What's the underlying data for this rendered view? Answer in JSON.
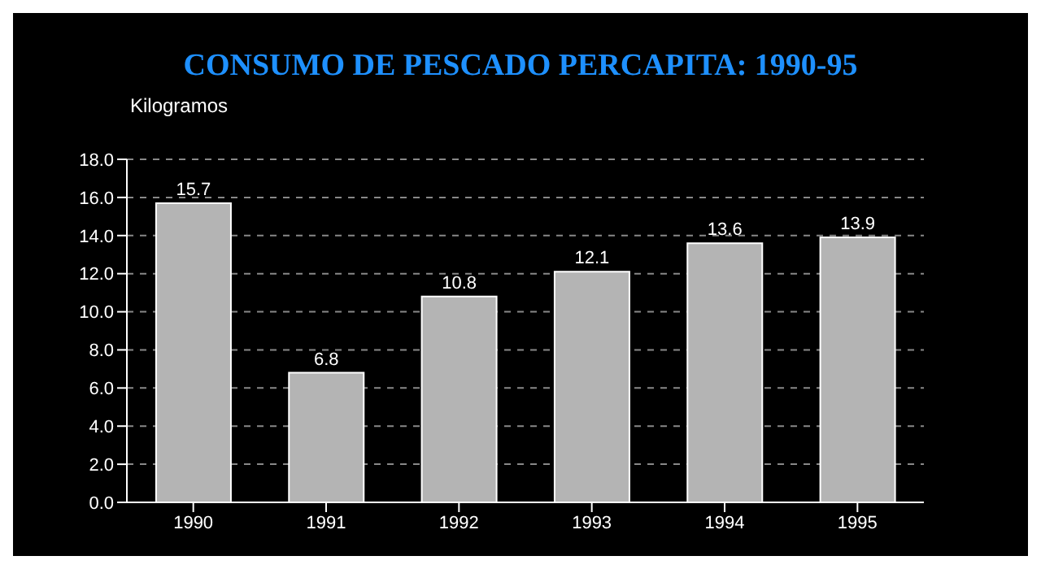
{
  "chart_data": {
    "type": "bar",
    "title": "CONSUMO DE PESCADO PERCAPITA: 1990-95",
    "ylabel": "Kilogramos",
    "categories": [
      "1990",
      "1991",
      "1992",
      "1993",
      "1994",
      "1995"
    ],
    "series": [
      {
        "color": "#b4b4b4",
        "values": [
          15.7,
          6.8,
          10.8,
          12.1,
          13.6,
          13.9
        ]
      }
    ],
    "ylim": [
      0,
      18
    ],
    "yticks": [
      {
        "value": 0,
        "label": "0.0"
      },
      {
        "value": 2,
        "label": "2.0"
      },
      {
        "value": 4,
        "label": "4.0"
      },
      {
        "value": 6,
        "label": "6.0"
      },
      {
        "value": 8,
        "label": "8.0"
      },
      {
        "value": 10,
        "label": "10.0"
      },
      {
        "value": 12,
        "label": "12.0"
      },
      {
        "value": 14,
        "label": "14.0"
      },
      {
        "value": 16,
        "label": "16.0"
      },
      {
        "value": 18,
        "label": "18.0"
      }
    ],
    "grid": "y",
    "data_labels": true
  }
}
